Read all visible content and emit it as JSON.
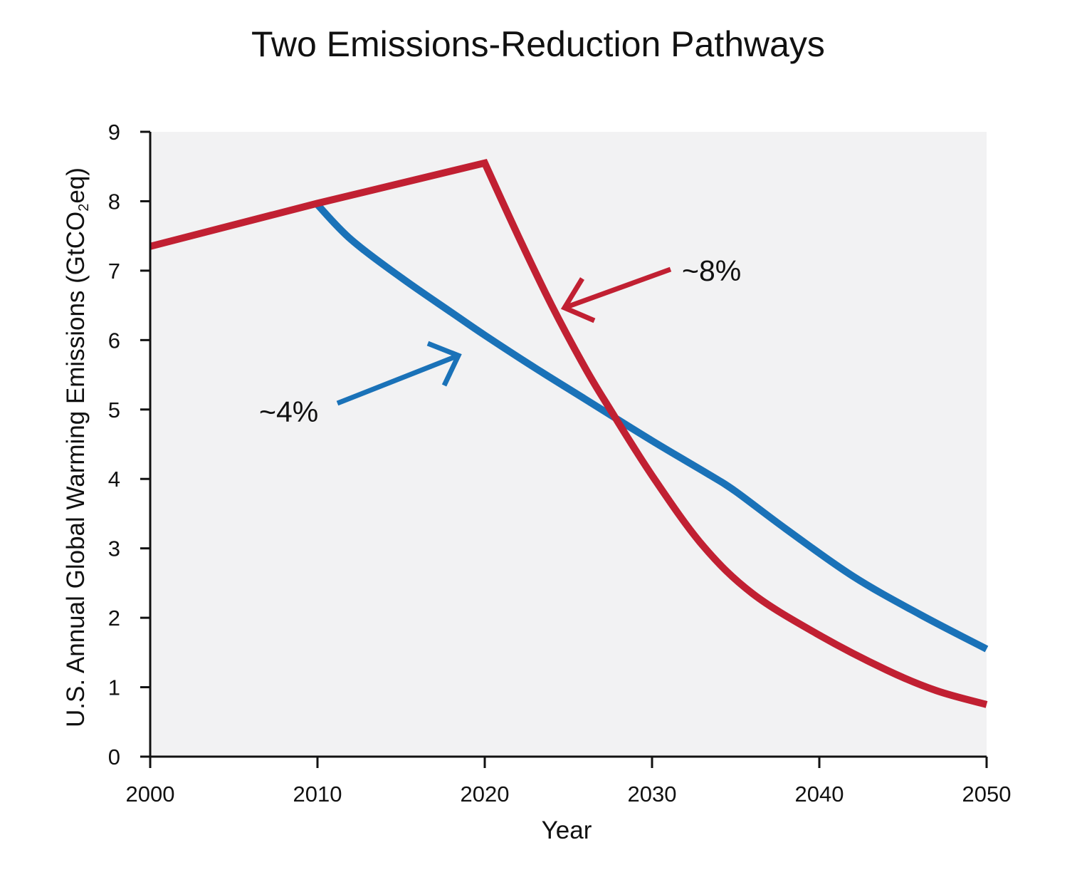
{
  "chart_data": {
    "type": "line",
    "title": "Two Emissions-Reduction Pathways",
    "xlabel": "Year",
    "ylabel_main": "U.S. Annual Global Warming Emissions (GtCO",
    "ylabel_sub": "2",
    "ylabel_end": "eq)",
    "xlim": [
      2000,
      2050
    ],
    "ylim": [
      0,
      9
    ],
    "x_ticks": [
      2000,
      2010,
      2020,
      2030,
      2040,
      2050
    ],
    "y_ticks": [
      0,
      1,
      2,
      3,
      4,
      5,
      6,
      7,
      8,
      9
    ],
    "plot_background": "#f2f2f3",
    "series": [
      {
        "color": "#1a72b8",
        "points": [
          [
            2010,
            7.95
          ],
          [
            2012,
            7.45
          ],
          [
            2015,
            6.9
          ],
          [
            2018,
            6.4
          ],
          [
            2020,
            6.07
          ],
          [
            2023,
            5.6
          ],
          [
            2026,
            5.15
          ],
          [
            2030,
            4.55
          ],
          [
            2033.5,
            4.05
          ],
          [
            2035,
            3.82
          ],
          [
            2038,
            3.28
          ],
          [
            2042,
            2.6
          ],
          [
            2046,
            2.05
          ],
          [
            2050,
            1.55
          ]
        ]
      },
      {
        "color": "#c12032",
        "points": [
          [
            2000,
            7.35
          ],
          [
            2010,
            7.97
          ],
          [
            2020,
            8.55
          ],
          [
            2022,
            7.5
          ],
          [
            2024,
            6.5
          ],
          [
            2026,
            5.6
          ],
          [
            2027.5,
            5.0
          ],
          [
            2030,
            4.05
          ],
          [
            2033,
            3.05
          ],
          [
            2036,
            2.35
          ],
          [
            2040,
            1.75
          ],
          [
            2044,
            1.25
          ],
          [
            2047,
            0.95
          ],
          [
            2050,
            0.75
          ]
        ]
      }
    ],
    "annotations": [
      {
        "text": "~8%",
        "color": "#c12032"
      },
      {
        "text": "~4%",
        "color": "#1a72b8"
      }
    ]
  }
}
